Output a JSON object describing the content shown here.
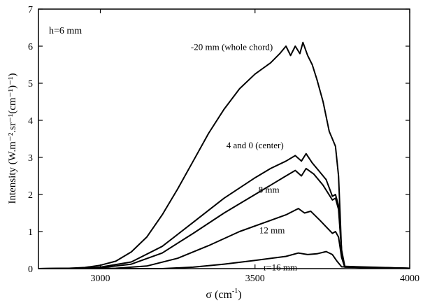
{
  "chart_data": {
    "type": "line",
    "xlabel_base": "σ (cm",
    "xlabel_sup": "-1",
    "xlabel_close": ")",
    "ylabel": "Intensity (W.m⁻².sr⁻¹(cm⁻¹)⁻¹)",
    "xlim": [
      2800,
      4000
    ],
    "ylim": [
      0,
      7
    ],
    "xticks": [
      3000,
      3500,
      4000
    ],
    "yticks": [
      0,
      1,
      2,
      3,
      4,
      5,
      6,
      7
    ],
    "grid": false,
    "annotation_box": "h=6 mm",
    "series": [
      {
        "name": "-20 mm (whole chord)",
        "label_at": [
          3425,
          5.9
        ],
        "values": [
          [
            2800,
            0.0
          ],
          [
            2900,
            0.01
          ],
          [
            2950,
            0.03
          ],
          [
            3000,
            0.09
          ],
          [
            3050,
            0.2
          ],
          [
            3100,
            0.45
          ],
          [
            3150,
            0.85
          ],
          [
            3200,
            1.45
          ],
          [
            3250,
            2.15
          ],
          [
            3300,
            2.9
          ],
          [
            3350,
            3.65
          ],
          [
            3400,
            4.3
          ],
          [
            3450,
            4.85
          ],
          [
            3500,
            5.25
          ],
          [
            3550,
            5.55
          ],
          [
            3580,
            5.8
          ],
          [
            3600,
            6.0
          ],
          [
            3615,
            5.75
          ],
          [
            3630,
            6.0
          ],
          [
            3645,
            5.8
          ],
          [
            3655,
            6.1
          ],
          [
            3670,
            5.75
          ],
          [
            3685,
            5.5
          ],
          [
            3700,
            5.1
          ],
          [
            3720,
            4.5
          ],
          [
            3740,
            3.7
          ],
          [
            3750,
            3.5
          ],
          [
            3760,
            3.3
          ],
          [
            3770,
            2.5
          ],
          [
            3775,
            1.5
          ],
          [
            3780,
            0.4
          ],
          [
            3790,
            0.06
          ],
          [
            3850,
            0.02
          ],
          [
            4000,
            0.01
          ]
        ]
      },
      {
        "name": "4 and 0 (center)",
        "label_at": [
          3500,
          3.25
        ],
        "values": [
          [
            2800,
            0.0
          ],
          [
            2950,
            0.01
          ],
          [
            3000,
            0.04
          ],
          [
            3100,
            0.18
          ],
          [
            3200,
            0.6
          ],
          [
            3300,
            1.25
          ],
          [
            3400,
            1.9
          ],
          [
            3500,
            2.45
          ],
          [
            3550,
            2.7
          ],
          [
            3600,
            2.9
          ],
          [
            3630,
            3.05
          ],
          [
            3650,
            2.9
          ],
          [
            3665,
            3.1
          ],
          [
            3685,
            2.85
          ],
          [
            3700,
            2.7
          ],
          [
            3730,
            2.4
          ],
          [
            3750,
            1.95
          ],
          [
            3760,
            2.0
          ],
          [
            3770,
            1.7
          ],
          [
            3780,
            0.5
          ],
          [
            3790,
            0.06
          ],
          [
            4000,
            0.01
          ]
        ]
      },
      {
        "name": "8 mm",
        "label_at": [
          3545,
          2.05
        ],
        "values": [
          [
            2800,
            0.0
          ],
          [
            3000,
            0.02
          ],
          [
            3100,
            0.12
          ],
          [
            3200,
            0.42
          ],
          [
            3300,
            0.95
          ],
          [
            3400,
            1.5
          ],
          [
            3500,
            2.0
          ],
          [
            3550,
            2.25
          ],
          [
            3600,
            2.5
          ],
          [
            3630,
            2.65
          ],
          [
            3650,
            2.5
          ],
          [
            3665,
            2.7
          ],
          [
            3690,
            2.55
          ],
          [
            3720,
            2.25
          ],
          [
            3750,
            1.85
          ],
          [
            3760,
            1.9
          ],
          [
            3770,
            1.6
          ],
          [
            3780,
            0.45
          ],
          [
            3790,
            0.05
          ],
          [
            4000,
            0.01
          ]
        ]
      },
      {
        "name": "12 mm",
        "label_at": [
          3555,
          0.95
        ],
        "values": [
          [
            2800,
            0.0
          ],
          [
            3050,
            0.01
          ],
          [
            3150,
            0.07
          ],
          [
            3250,
            0.28
          ],
          [
            3350,
            0.62
          ],
          [
            3450,
            1.0
          ],
          [
            3550,
            1.3
          ],
          [
            3600,
            1.45
          ],
          [
            3640,
            1.62
          ],
          [
            3660,
            1.5
          ],
          [
            3680,
            1.55
          ],
          [
            3710,
            1.3
          ],
          [
            3750,
            0.95
          ],
          [
            3760,
            1.0
          ],
          [
            3770,
            0.85
          ],
          [
            3780,
            0.3
          ],
          [
            3790,
            0.04
          ],
          [
            4000,
            0.01
          ]
        ]
      },
      {
        "name": "r=16 mm",
        "label_at": [
          3582,
          -0.05
        ],
        "values": [
          [
            2800,
            0.0
          ],
          [
            3200,
            0.0
          ],
          [
            3300,
            0.04
          ],
          [
            3400,
            0.12
          ],
          [
            3500,
            0.22
          ],
          [
            3600,
            0.33
          ],
          [
            3640,
            0.42
          ],
          [
            3670,
            0.38
          ],
          [
            3700,
            0.4
          ],
          [
            3730,
            0.46
          ],
          [
            3750,
            0.38
          ],
          [
            3765,
            0.2
          ],
          [
            3780,
            0.05
          ],
          [
            4000,
            0.01
          ]
        ]
      }
    ]
  }
}
